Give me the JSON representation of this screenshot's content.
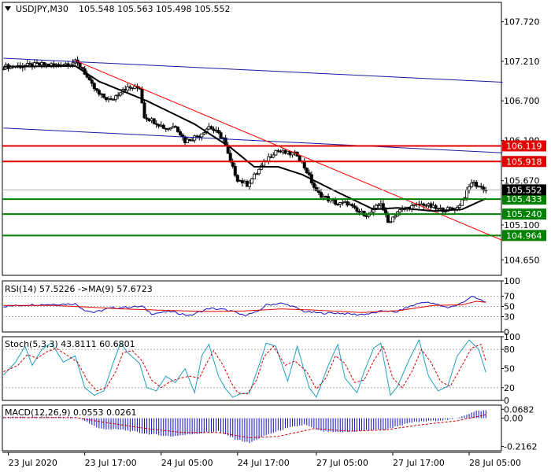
{
  "header": {
    "symbol": "USDJPY,M30",
    "ohlc": "105.548 105.563 105.498 105.552"
  },
  "colors": {
    "bull": "#000000",
    "bear": "#000000",
    "ma": "#000000",
    "trend_red": "#ff0000",
    "channel_blue": "#1a1aa0",
    "level_red": "#e00000",
    "level_green": "#008000",
    "rsi_line": "#1010c0",
    "rsi_ma": "#e00000",
    "stoch_main": "#20a0c0",
    "stoch_signal": "#d00000",
    "macd_hist": "#1010c0",
    "macd_signal": "#d00000"
  },
  "chart_data": {
    "type": "candlestick",
    "main": {
      "ylim": [
        104.45,
        107.97
      ],
      "y_ticks": [
        104.65,
        105.1,
        105.67,
        106.19,
        106.7,
        107.21,
        107.72
      ],
      "y_tick_labels": [
        "104.650",
        "105.100",
        "105.670",
        "106.190",
        "106.700",
        "107.210",
        "107.720"
      ],
      "x_ticks": [
        {
          "x": 2,
          "label": "23 Jul 2020"
        },
        {
          "x": 34,
          "label": "23 Jul 17:00"
        },
        {
          "x": 66,
          "label": "24 Jul 05:00"
        },
        {
          "x": 98,
          "label": "24 Jul 17:00"
        },
        {
          "x": 131,
          "label": "27 Jul 05:00"
        },
        {
          "x": 163,
          "label": "27 Jul 17:00"
        },
        {
          "x": 195,
          "label": "28 Jul 05:00"
        }
      ],
      "current_price": {
        "value": 105.552,
        "label": "105.552"
      },
      "levels": [
        {
          "value": 106.119,
          "label": "106.119",
          "color": "red"
        },
        {
          "value": 105.918,
          "label": "105.918",
          "color": "red"
        },
        {
          "value": 105.433,
          "label": "105.433",
          "color": "green"
        },
        {
          "value": 105.24,
          "label": "105.240",
          "color": "green"
        },
        {
          "value": 104.964,
          "label": "104.964",
          "color": "green"
        }
      ],
      "close_path": [
        [
          0,
          107.14
        ],
        [
          8,
          107.15
        ],
        [
          16,
          107.17
        ],
        [
          22,
          107.16
        ],
        [
          30,
          107.2
        ],
        [
          33,
          107.12
        ],
        [
          36,
          106.94
        ],
        [
          40,
          106.78
        ],
        [
          45,
          106.7
        ],
        [
          50,
          106.86
        ],
        [
          57,
          106.87
        ],
        [
          59,
          106.5
        ],
        [
          64,
          106.42
        ],
        [
          68,
          106.34
        ],
        [
          72,
          106.38
        ],
        [
          76,
          106.18
        ],
        [
          82,
          106.26
        ],
        [
          86,
          106.37
        ],
        [
          92,
          106.22
        ],
        [
          95,
          105.9
        ],
        [
          98,
          105.69
        ],
        [
          102,
          105.62
        ],
        [
          106,
          105.77
        ],
        [
          110,
          105.94
        ],
        [
          114,
          106.06
        ],
        [
          119,
          106.02
        ],
        [
          123,
          106.01
        ],
        [
          127,
          105.79
        ],
        [
          131,
          105.52
        ],
        [
          136,
          105.43
        ],
        [
          140,
          105.37
        ],
        [
          144,
          105.38
        ],
        [
          148,
          105.27
        ],
        [
          153,
          105.23
        ],
        [
          158,
          105.39
        ],
        [
          161,
          105.13
        ],
        [
          165,
          105.27
        ],
        [
          170,
          105.33
        ],
        [
          176,
          105.37
        ],
        [
          182,
          105.3
        ],
        [
          186,
          105.3
        ],
        [
          190,
          105.32
        ],
        [
          194,
          105.52
        ],
        [
          196,
          105.65
        ],
        [
          199,
          105.6
        ],
        [
          202,
          105.55
        ]
      ],
      "moving_average": [
        [
          0,
          107.14
        ],
        [
          30,
          107.15
        ],
        [
          40,
          106.95
        ],
        [
          60,
          106.7
        ],
        [
          80,
          106.4
        ],
        [
          95,
          106.1
        ],
        [
          105,
          105.85
        ],
        [
          115,
          105.85
        ],
        [
          125,
          105.75
        ],
        [
          140,
          105.52
        ],
        [
          155,
          105.3
        ],
        [
          165,
          105.32
        ],
        [
          180,
          105.28
        ],
        [
          192,
          105.3
        ],
        [
          202,
          105.44
        ]
      ],
      "channel_lines": [
        [
          [
            0,
            107.25
          ],
          [
            209,
            106.94
          ]
        ],
        [
          [
            0,
            106.35
          ],
          [
            209,
            106.03
          ]
        ]
      ],
      "trend_line": [
        [
          30,
          107.22
        ],
        [
          209,
          104.9
        ]
      ]
    },
    "rsi": {
      "label": "RSI(14) 57.5226  ->MA(9) 57.6723",
      "ylim": [
        0,
        100
      ],
      "ticks": [
        0,
        30,
        50,
        70,
        100
      ],
      "levels": [
        30,
        70
      ],
      "rsi": [
        [
          0,
          50
        ],
        [
          10,
          53
        ],
        [
          20,
          54
        ],
        [
          30,
          55
        ],
        [
          34,
          43
        ],
        [
          38,
          38
        ],
        [
          44,
          46
        ],
        [
          50,
          48
        ],
        [
          58,
          50
        ],
        [
          62,
          36
        ],
        [
          70,
          40
        ],
        [
          78,
          32
        ],
        [
          86,
          46
        ],
        [
          92,
          44
        ],
        [
          96,
          40
        ],
        [
          100,
          33
        ],
        [
          106,
          38
        ],
        [
          110,
          53
        ],
        [
          116,
          56
        ],
        [
          120,
          52
        ],
        [
          126,
          40
        ],
        [
          132,
          37
        ],
        [
          140,
          37
        ],
        [
          148,
          34
        ],
        [
          154,
          36
        ],
        [
          160,
          42
        ],
        [
          164,
          38
        ],
        [
          170,
          50
        ],
        [
          176,
          59
        ],
        [
          182,
          53
        ],
        [
          186,
          48
        ],
        [
          190,
          52
        ],
        [
          196,
          69
        ],
        [
          199,
          64
        ],
        [
          202,
          58
        ]
      ],
      "ma": [
        [
          0,
          52
        ],
        [
          20,
          52
        ],
        [
          34,
          49
        ],
        [
          50,
          45
        ],
        [
          70,
          42
        ],
        [
          86,
          40
        ],
        [
          100,
          41
        ],
        [
          116,
          45
        ],
        [
          130,
          43
        ],
        [
          150,
          38
        ],
        [
          166,
          42
        ],
        [
          180,
          52
        ],
        [
          192,
          53
        ],
        [
          198,
          60
        ],
        [
          202,
          58
        ]
      ]
    },
    "stochastic": {
      "label": "Stoch(5,3,3) 43.8111 60.6801",
      "ylim": [
        0,
        100
      ],
      "ticks": [
        0,
        20,
        50,
        80,
        100
      ],
      "levels": [
        20,
        80
      ],
      "main": [
        [
          0,
          40
        ],
        [
          5,
          60
        ],
        [
          9,
          85
        ],
        [
          12,
          55
        ],
        [
          16,
          80
        ],
        [
          20,
          90
        ],
        [
          25,
          60
        ],
        [
          30,
          70
        ],
        [
          34,
          20
        ],
        [
          38,
          8
        ],
        [
          42,
          15
        ],
        [
          46,
          60
        ],
        [
          49,
          90
        ],
        [
          52,
          75
        ],
        [
          57,
          58
        ],
        [
          60,
          20
        ],
        [
          64,
          15
        ],
        [
          68,
          38
        ],
        [
          72,
          28
        ],
        [
          76,
          50
        ],
        [
          80,
          12
        ],
        [
          83,
          70
        ],
        [
          86,
          88
        ],
        [
          90,
          38
        ],
        [
          93,
          18
        ],
        [
          96,
          5
        ],
        [
          99,
          10
        ],
        [
          103,
          12
        ],
        [
          107,
          55
        ],
        [
          110,
          90
        ],
        [
          114,
          85
        ],
        [
          119,
          30
        ],
        [
          123,
          85
        ],
        [
          128,
          20
        ],
        [
          131,
          5
        ],
        [
          136,
          55
        ],
        [
          140,
          88
        ],
        [
          143,
          35
        ],
        [
          148,
          12
        ],
        [
          151,
          45
        ],
        [
          155,
          82
        ],
        [
          158,
          90
        ],
        [
          162,
          8
        ],
        [
          165,
          22
        ],
        [
          170,
          65
        ],
        [
          174,
          95
        ],
        [
          178,
          38
        ],
        [
          182,
          15
        ],
        [
          186,
          22
        ],
        [
          190,
          70
        ],
        [
          195,
          95
        ],
        [
          199,
          80
        ],
        [
          202,
          44
        ]
      ],
      "signal": [
        [
          0,
          45
        ],
        [
          6,
          55
        ],
        [
          10,
          72
        ],
        [
          14,
          66
        ],
        [
          18,
          76
        ],
        [
          22,
          82
        ],
        [
          27,
          70
        ],
        [
          31,
          60
        ],
        [
          35,
          32
        ],
        [
          39,
          15
        ],
        [
          43,
          20
        ],
        [
          47,
          45
        ],
        [
          50,
          75
        ],
        [
          54,
          78
        ],
        [
          58,
          62
        ],
        [
          62,
          32
        ],
        [
          66,
          20
        ],
        [
          70,
          30
        ],
        [
          74,
          35
        ],
        [
          78,
          38
        ],
        [
          82,
          35
        ],
        [
          85,
          58
        ],
        [
          88,
          78
        ],
        [
          92,
          55
        ],
        [
          95,
          30
        ],
        [
          98,
          12
        ],
        [
          102,
          10
        ],
        [
          106,
          32
        ],
        [
          109,
          68
        ],
        [
          113,
          85
        ],
        [
          118,
          55
        ],
        [
          122,
          62
        ],
        [
          127,
          45
        ],
        [
          131,
          18
        ],
        [
          135,
          35
        ],
        [
          139,
          70
        ],
        [
          143,
          58
        ],
        [
          147,
          28
        ],
        [
          151,
          32
        ],
        [
          155,
          62
        ],
        [
          159,
          85
        ],
        [
          163,
          35
        ],
        [
          167,
          20
        ],
        [
          171,
          45
        ],
        [
          175,
          80
        ],
        [
          179,
          60
        ],
        [
          183,
          30
        ],
        [
          187,
          22
        ],
        [
          191,
          48
        ],
        [
          196,
          82
        ],
        [
          200,
          88
        ],
        [
          202,
          61
        ]
      ]
    },
    "macd": {
      "label": "MACD(12,26,9) 0.0553 0.0261",
      "ylim": [
        -0.25,
        0.1
      ],
      "ticks": [
        0.0682,
        0.0,
        -0.2162
      ],
      "tick_labels": [
        "0.0682",
        "0.00",
        "-0.2162"
      ],
      "histogram": [
        [
          0,
          0.008
        ],
        [
          25,
          0.01
        ],
        [
          32,
          0.0
        ],
        [
          40,
          -0.08
        ],
        [
          50,
          -0.09
        ],
        [
          60,
          -0.12
        ],
        [
          70,
          -0.14
        ],
        [
          80,
          -0.12
        ],
        [
          90,
          -0.1
        ],
        [
          97,
          -0.16
        ],
        [
          103,
          -0.19
        ],
        [
          110,
          -0.13
        ],
        [
          118,
          -0.08
        ],
        [
          126,
          -0.05
        ],
        [
          133,
          -0.1
        ],
        [
          140,
          -0.11
        ],
        [
          148,
          -0.1
        ],
        [
          155,
          -0.09
        ],
        [
          160,
          -0.09
        ],
        [
          165,
          -0.06
        ],
        [
          172,
          -0.03
        ],
        [
          180,
          -0.02
        ],
        [
          188,
          -0.01
        ],
        [
          194,
          0.03
        ],
        [
          198,
          0.055
        ],
        [
          202,
          0.06
        ]
      ],
      "signal": [
        [
          0,
          0.005
        ],
        [
          30,
          0.005
        ],
        [
          45,
          -0.04
        ],
        [
          60,
          -0.08
        ],
        [
          75,
          -0.11
        ],
        [
          90,
          -0.11
        ],
        [
          103,
          -0.15
        ],
        [
          115,
          -0.14
        ],
        [
          130,
          -0.08
        ],
        [
          145,
          -0.1
        ],
        [
          160,
          -0.09
        ],
        [
          175,
          -0.05
        ],
        [
          190,
          -0.02
        ],
        [
          202,
          0.026
        ]
      ]
    }
  }
}
